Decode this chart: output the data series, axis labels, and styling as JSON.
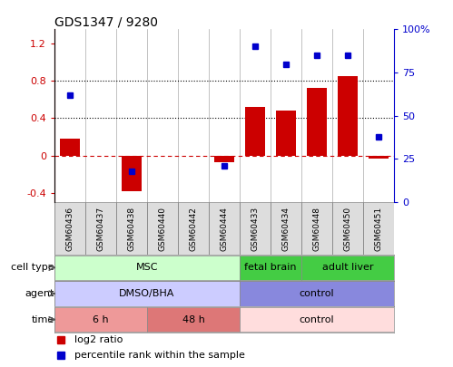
{
  "title": "GDS1347 / 9280",
  "samples": [
    "GSM60436",
    "GSM60437",
    "GSM60438",
    "GSM60440",
    "GSM60442",
    "GSM60444",
    "GSM60433",
    "GSM60434",
    "GSM60448",
    "GSM60450",
    "GSM60451"
  ],
  "log2_ratio": [
    0.18,
    0.0,
    -0.38,
    0.0,
    0.0,
    -0.07,
    0.52,
    0.48,
    0.72,
    0.85,
    -0.03
  ],
  "percentile_rank": [
    62,
    null,
    18,
    null,
    null,
    21,
    90,
    80,
    85,
    85,
    38
  ],
  "ylim_left": [
    -0.5,
    1.35
  ],
  "ylim_right": [
    0,
    100
  ],
  "yticks_left": [
    -0.4,
    0.0,
    0.4,
    0.8,
    1.2
  ],
  "yticks_right": [
    0,
    25,
    50,
    75,
    100
  ],
  "hlines": [
    0.4,
    0.8
  ],
  "bar_color": "#cc0000",
  "point_color": "#0000cc",
  "zero_line_color": "#cc0000",
  "cell_type_row": {
    "label": "cell type",
    "groups": [
      {
        "text": "MSC",
        "start": 0,
        "end": 6,
        "color": "#ccffcc"
      },
      {
        "text": "fetal brain",
        "start": 6,
        "end": 8,
        "color": "#44cc44"
      },
      {
        "text": "adult liver",
        "start": 8,
        "end": 11,
        "color": "#44cc44"
      }
    ]
  },
  "agent_row": {
    "label": "agent",
    "groups": [
      {
        "text": "DMSO/BHA",
        "start": 0,
        "end": 6,
        "color": "#ccccff"
      },
      {
        "text": "control",
        "start": 6,
        "end": 11,
        "color": "#8888dd"
      }
    ]
  },
  "time_row": {
    "label": "time",
    "groups": [
      {
        "text": "6 h",
        "start": 0,
        "end": 3,
        "color": "#ee9999"
      },
      {
        "text": "48 h",
        "start": 3,
        "end": 6,
        "color": "#dd7777"
      },
      {
        "text": "control",
        "start": 6,
        "end": 11,
        "color": "#ffdddd"
      }
    ]
  },
  "legend": [
    {
      "label": "log2 ratio",
      "color": "#cc0000",
      "marker": "s"
    },
    {
      "label": "percentile rank within the sample",
      "color": "#0000cc",
      "marker": "s"
    }
  ]
}
